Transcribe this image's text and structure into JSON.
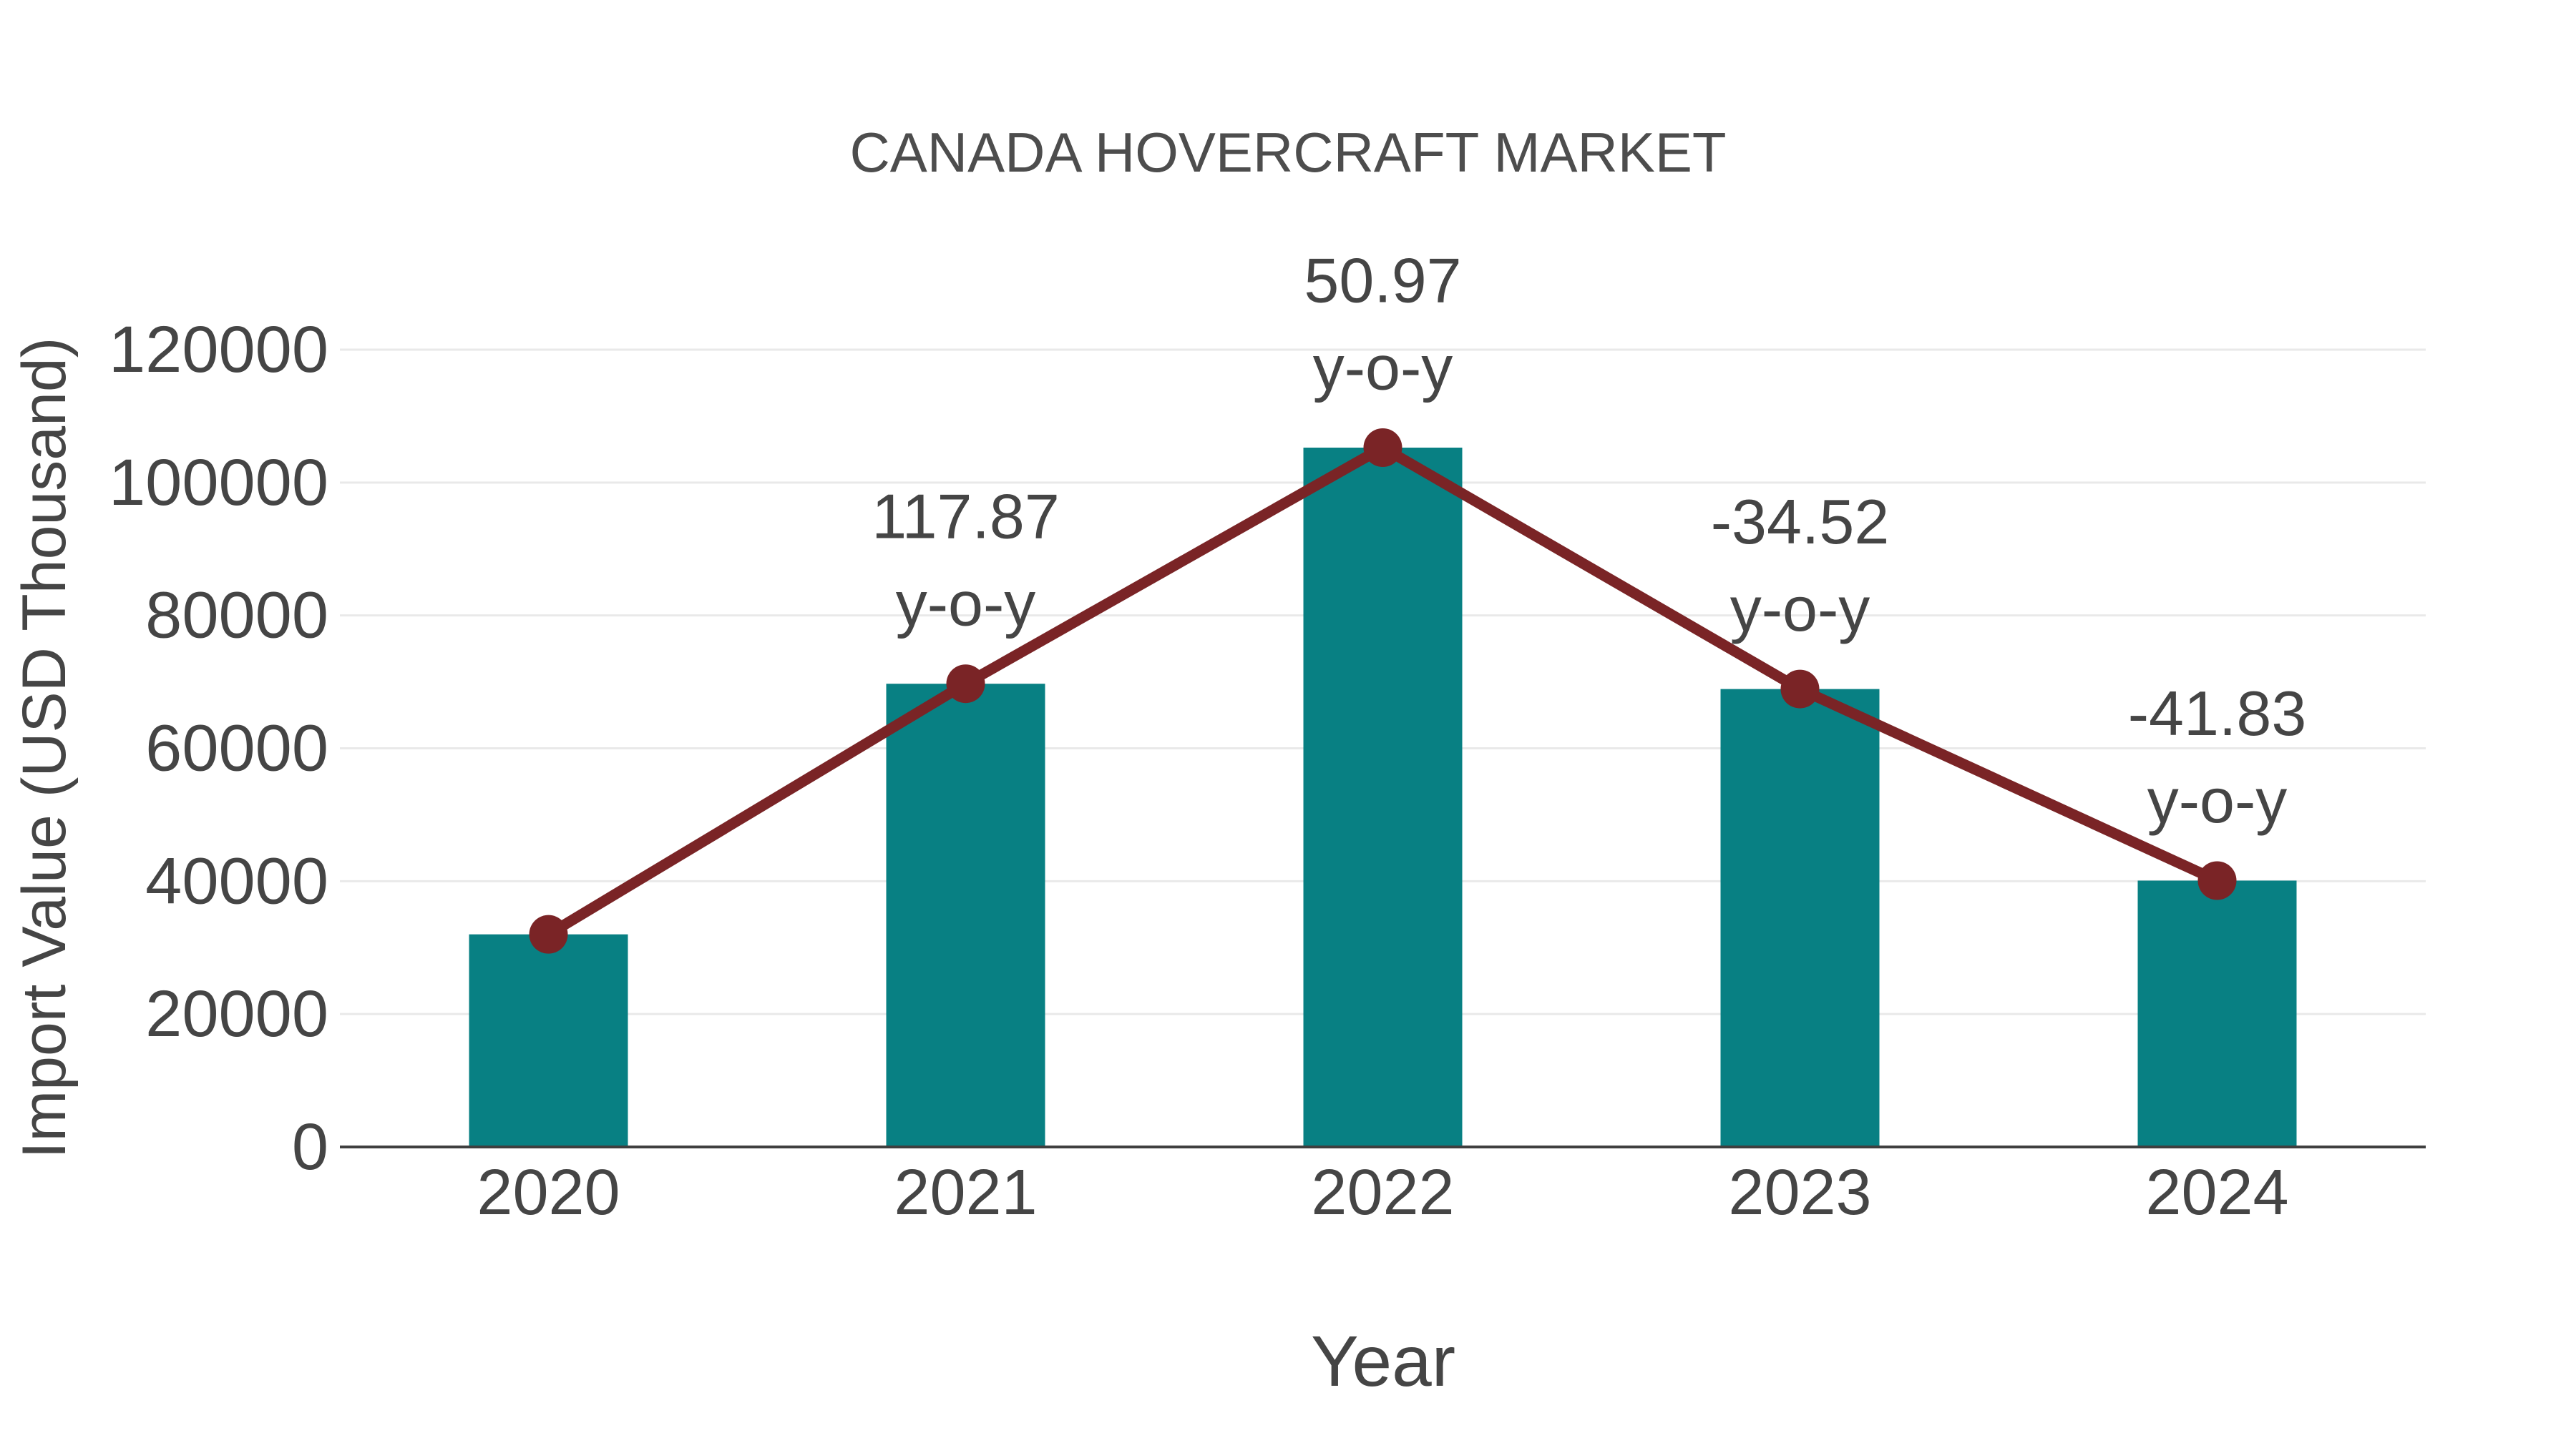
{
  "title": "CANADA HOVERCRAFT MARKET",
  "chart_data": {
    "type": "bar",
    "title": "CANADA HOVERCRAFT MARKET",
    "xlabel": "Year",
    "ylabel": "Import Value (USD Thousand)",
    "categories": [
      "2020",
      "2021",
      "2022",
      "2023",
      "2024"
    ],
    "values": [
      32000,
      69718,
      105255,
      68921,
      40090
    ],
    "line_overlay": {
      "enabled": true,
      "follows": "values",
      "markers": true,
      "name": "y-o-y trend line"
    },
    "annotations": [
      {
        "category": "2021",
        "lines": [
          "117.87",
          "y-o-y"
        ]
      },
      {
        "category": "2022",
        "lines": [
          "50.97",
          "y-o-y"
        ]
      },
      {
        "category": "2023",
        "lines": [
          "-34.52",
          "y-o-y"
        ]
      },
      {
        "category": "2024",
        "lines": [
          "-41.83",
          "y-o-y"
        ]
      }
    ],
    "yoy_percent": {
      "2021": 117.87,
      "2022": 50.97,
      "2023": -34.52,
      "2024": -41.83
    },
    "yticks": [
      0,
      20000,
      40000,
      60000,
      80000,
      100000,
      120000
    ],
    "ylim": [
      0,
      120000
    ],
    "grid": "horizontal",
    "legend": "none",
    "colors": {
      "bar": "#088083",
      "line": "#7a2426",
      "marker": "#7a2426",
      "text": "#454545",
      "grid": "#e9e9e9",
      "axis": "#3f3f3f",
      "background": "#ffffff"
    }
  }
}
